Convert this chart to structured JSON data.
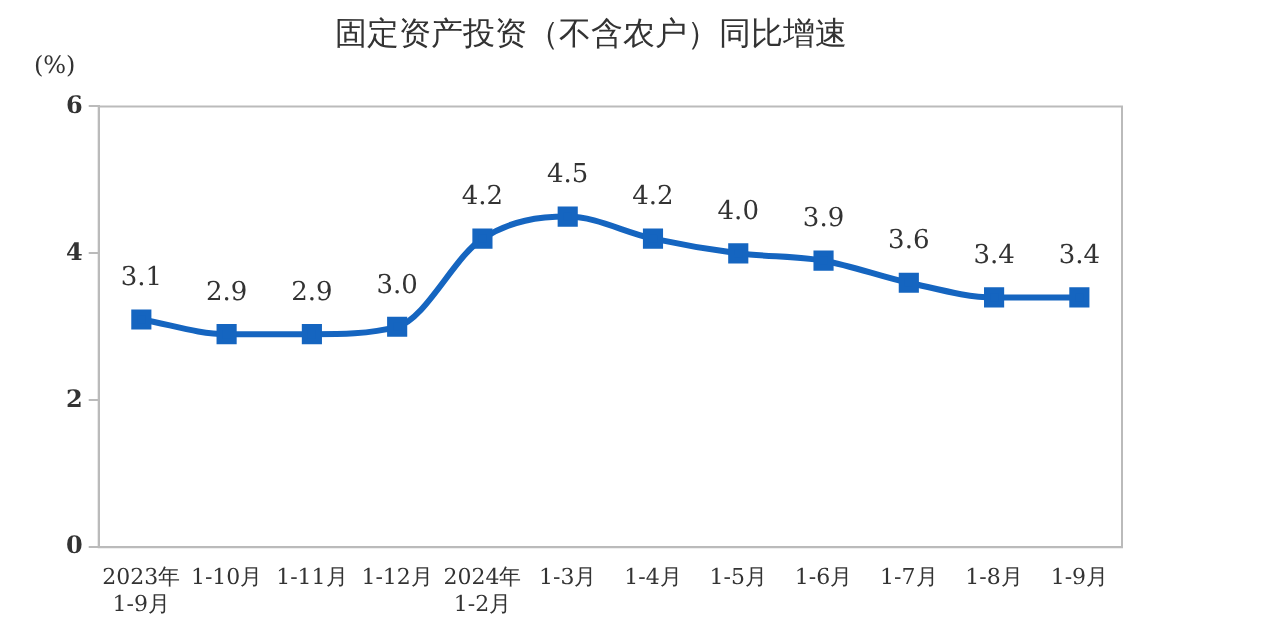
{
  "chart_data": {
    "type": "line",
    "title": "固定资产投资（不含农户）同比增速",
    "ylabel": "(%)",
    "categories": [
      "2023年\n1-9月",
      "1-10月",
      "1-11月",
      "1-12月",
      "2024年\n1-2月",
      "1-3月",
      "1-4月",
      "1-5月",
      "1-6月",
      "1-7月",
      "1-8月",
      "1-9月"
    ],
    "series": [
      {
        "color": "#1565c0",
        "values": [
          3.1,
          2.9,
          2.9,
          3.0,
          4.2,
          4.5,
          4.2,
          4.0,
          3.9,
          3.6,
          3.4,
          3.4
        ],
        "value_labels": [
          "3.1",
          "2.9",
          "2.9",
          "3.0",
          "4.2",
          "4.5",
          "4.2",
          "4.0",
          "3.9",
          "3.6",
          "3.4",
          "3.4"
        ]
      }
    ],
    "ylim": [
      0,
      6
    ],
    "yticks": [
      0,
      2,
      4,
      6
    ],
    "grid": false,
    "legend": false,
    "marker": "square",
    "line_style": "solid"
  }
}
